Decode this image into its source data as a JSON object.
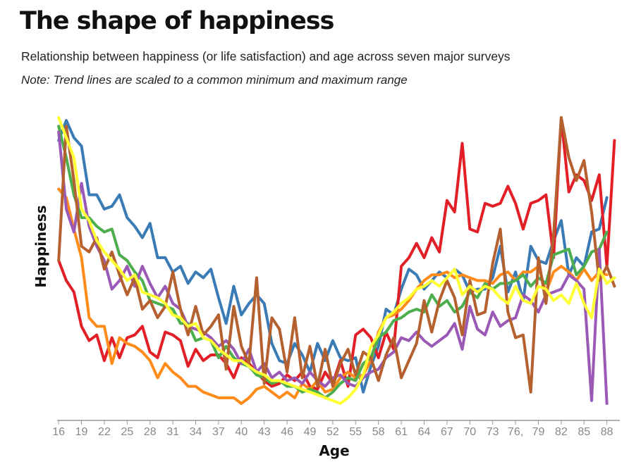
{
  "chart_data": {
    "type": "line",
    "title": "The shape of happiness",
    "subtitle": "Relationship between happiness (or life satisfaction) and age across seven major surveys",
    "note": "Note: Trend lines are scaled to a common minimum and maximum range",
    "xlabel": "Age",
    "ylabel": "Happiness",
    "xlim": [
      15.8,
      89.7
    ],
    "ylim": [
      0,
      1
    ],
    "grid": false,
    "y_ticks_visible": false,
    "x_ticks": [
      16,
      19,
      22,
      25,
      28,
      31,
      34,
      37,
      40,
      43,
      46,
      49,
      52,
      55,
      58,
      61,
      64,
      67,
      70,
      73,
      76,
      79,
      82,
      85,
      88
    ],
    "x_tick_labels": [
      "16",
      "19",
      "22",
      "25",
      "28",
      "31",
      "34",
      "37",
      "40",
      "43",
      "46",
      "49",
      "52",
      "55",
      "58",
      "61",
      "64",
      "67",
      "70",
      "73",
      "76,",
      "79",
      "82",
      "85",
      "88"
    ],
    "series": [
      {
        "color": "#3a7bb5",
        "x": [
          16,
          17,
          18,
          19,
          20,
          21,
          22,
          23,
          24,
          25,
          26,
          27,
          28,
          29,
          30,
          31,
          32,
          33,
          34,
          35,
          36,
          37,
          38,
          39,
          40,
          41,
          42,
          43,
          44,
          45,
          46,
          47,
          48,
          49,
          50,
          51,
          52,
          53,
          54,
          55,
          56,
          57,
          58,
          59,
          60,
          61,
          62,
          63,
          64,
          65,
          66,
          67,
          68,
          69,
          70,
          71,
          72,
          73,
          74,
          75,
          76,
          77,
          78,
          79,
          80,
          81,
          82,
          83,
          84,
          85,
          86,
          87,
          88
        ],
        "y": [
          0.92,
          0.99,
          0.93,
          0.9,
          0.73,
          0.73,
          0.68,
          0.69,
          0.73,
          0.65,
          0.62,
          0.58,
          0.63,
          0.51,
          0.51,
          0.46,
          0.48,
          0.42,
          0.46,
          0.44,
          0.47,
          0.37,
          0.28,
          0.41,
          0.31,
          0.35,
          0.38,
          0.35,
          0.21,
          0.15,
          0.14,
          0.21,
          0.17,
          0.11,
          0.21,
          0.15,
          0.22,
          0.16,
          0.15,
          0.16,
          0.04,
          0.13,
          0.2,
          0.33,
          0.31,
          0.4,
          0.47,
          0.45,
          0.4,
          0.43,
          0.46,
          0.44,
          0.47,
          0.45,
          0.39,
          0.4,
          0.4,
          0.44,
          0.55,
          0.39,
          0.46,
          0.36,
          0.55,
          0.5,
          0.49,
          0.57,
          0.64,
          0.45,
          0.51,
          0.48,
          0.6,
          0.61,
          0.72
        ]
      },
      {
        "color": "#e21f26",
        "x": [
          16,
          17,
          18,
          19,
          20,
          21,
          22,
          23,
          24,
          25,
          26,
          27,
          28,
          29,
          30,
          31,
          32,
          33,
          34,
          35,
          36,
          37,
          38,
          39,
          40,
          41,
          42,
          43,
          44,
          45,
          46,
          47,
          48,
          49,
          50,
          51,
          52,
          53,
          54,
          55,
          56,
          57,
          58,
          59,
          60,
          61,
          62,
          63,
          64,
          65,
          66,
          67,
          68,
          69,
          70,
          71,
          72,
          73,
          74,
          75,
          76,
          77,
          78,
          79,
          80,
          81,
          82,
          83,
          84,
          85,
          86,
          87,
          88,
          89
        ],
        "y": [
          0.5,
          0.43,
          0.39,
          0.27,
          0.22,
          0.24,
          0.15,
          0.23,
          0.16,
          0.23,
          0.24,
          0.27,
          0.18,
          0.16,
          0.25,
          0.24,
          0.22,
          0.13,
          0.19,
          0.15,
          0.17,
          0.17,
          0.14,
          0.09,
          0.16,
          0.14,
          0.11,
          0.08,
          0.06,
          0.07,
          0.1,
          0.08,
          0.11,
          0.06,
          0.05,
          0.11,
          0.07,
          0.15,
          0.06,
          0.24,
          0.26,
          0.23,
          0.16,
          0.25,
          0.19,
          0.48,
          0.51,
          0.56,
          0.51,
          0.58,
          0.53,
          0.71,
          0.67,
          0.91,
          0.61,
          0.6,
          0.7,
          0.69,
          0.7,
          0.76,
          0.7,
          0.61,
          0.7,
          0.71,
          0.73,
          0.51,
          1.0,
          0.74,
          0.8,
          0.78,
          0.71,
          0.8,
          0.48,
          0.92
        ]
      },
      {
        "color": "#ff8c1a",
        "x": [
          16,
          17,
          18,
          19,
          20,
          21,
          22,
          23,
          24,
          25,
          26,
          27,
          28,
          29,
          30,
          31,
          32,
          33,
          34,
          35,
          36,
          37,
          38,
          39,
          40,
          41,
          42,
          43,
          44,
          45,
          46,
          47,
          48,
          49,
          50,
          51,
          52,
          53,
          54,
          55,
          56,
          57,
          58,
          59,
          60,
          61,
          62,
          63,
          64,
          65,
          66,
          67,
          68,
          69,
          70,
          71,
          72,
          73,
          74,
          75,
          76,
          77,
          78,
          79,
          80,
          81,
          82,
          83,
          84,
          85,
          86,
          87,
          88
        ],
        "y": [
          0.75,
          0.72,
          0.61,
          0.51,
          0.3,
          0.27,
          0.27,
          0.14,
          0.23,
          0.21,
          0.2,
          0.18,
          0.15,
          0.09,
          0.14,
          0.11,
          0.09,
          0.06,
          0.06,
          0.04,
          0.03,
          0.02,
          0.02,
          0.02,
          0.0,
          0.02,
          0.05,
          0.06,
          0.04,
          0.02,
          0.04,
          0.02,
          0.07,
          0.05,
          0.08,
          0.04,
          0.05,
          0.09,
          0.11,
          0.09,
          0.1,
          0.15,
          0.25,
          0.3,
          0.31,
          0.33,
          0.36,
          0.4,
          0.43,
          0.45,
          0.45,
          0.46,
          0.44,
          0.45,
          0.44,
          0.43,
          0.43,
          0.42,
          0.45,
          0.46,
          0.43,
          0.46,
          0.46,
          0.48,
          0.39,
          0.46,
          0.48,
          0.46,
          0.43,
          0.47,
          0.43,
          0.46,
          0.45
        ]
      },
      {
        "color": "#4cae4c",
        "x": [
          16,
          17,
          18,
          19,
          20,
          21,
          22,
          23,
          24,
          25,
          26,
          27,
          28,
          29,
          30,
          31,
          32,
          33,
          34,
          35,
          36,
          37,
          38,
          39,
          40,
          41,
          42,
          43,
          44,
          45,
          46,
          47,
          48,
          49,
          50,
          51,
          52,
          53,
          54,
          55,
          56,
          57,
          58,
          59,
          60,
          61,
          62,
          63,
          64,
          65,
          66,
          67,
          68,
          69,
          70,
          71,
          72,
          73,
          74,
          75,
          76,
          77,
          78,
          79,
          80,
          81,
          82,
          83,
          84,
          85,
          86,
          87,
          88
        ],
        "y": [
          0.97,
          0.86,
          0.73,
          0.65,
          0.65,
          0.62,
          0.6,
          0.61,
          0.52,
          0.5,
          0.46,
          0.43,
          0.36,
          0.35,
          0.34,
          0.33,
          0.28,
          0.28,
          0.22,
          0.23,
          0.22,
          0.16,
          0.2,
          0.16,
          0.14,
          0.13,
          0.1,
          0.09,
          0.07,
          0.08,
          0.06,
          0.06,
          0.04,
          0.05,
          0.04,
          0.02,
          0.04,
          0.07,
          0.09,
          0.08,
          0.14,
          0.16,
          0.23,
          0.25,
          0.29,
          0.3,
          0.32,
          0.33,
          0.32,
          0.38,
          0.34,
          0.36,
          0.32,
          0.34,
          0.39,
          0.37,
          0.42,
          0.4,
          0.42,
          0.42,
          0.43,
          0.45,
          0.41,
          0.44,
          0.42,
          0.52,
          0.53,
          0.54,
          0.45,
          0.48,
          0.53,
          0.54,
          0.6
        ]
      },
      {
        "color": "#9b59b6",
        "x": [
          16,
          17,
          18,
          19,
          20,
          21,
          22,
          23,
          24,
          25,
          26,
          27,
          28,
          29,
          30,
          31,
          32,
          33,
          34,
          35,
          36,
          37,
          38,
          39,
          40,
          41,
          42,
          43,
          44,
          45,
          46,
          47,
          48,
          49,
          50,
          51,
          52,
          53,
          54,
          55,
          56,
          57,
          58,
          59,
          60,
          61,
          62,
          63,
          64,
          65,
          66,
          67,
          68,
          69,
          70,
          71,
          72,
          73,
          74,
          75,
          76,
          77,
          78,
          79,
          80,
          81,
          82,
          83,
          84,
          85,
          86,
          87,
          88
        ],
        "y": [
          0.95,
          0.68,
          0.6,
          0.77,
          0.62,
          0.55,
          0.5,
          0.4,
          0.43,
          0.48,
          0.41,
          0.48,
          0.42,
          0.37,
          0.41,
          0.35,
          0.33,
          0.27,
          0.26,
          0.25,
          0.23,
          0.2,
          0.22,
          0.19,
          0.14,
          0.19,
          0.11,
          0.14,
          0.09,
          0.11,
          0.08,
          0.09,
          0.07,
          0.11,
          0.08,
          0.06,
          0.09,
          0.1,
          0.07,
          0.06,
          0.09,
          0.11,
          0.12,
          0.16,
          0.18,
          0.23,
          0.22,
          0.25,
          0.22,
          0.2,
          0.22,
          0.24,
          0.28,
          0.19,
          0.34,
          0.26,
          0.24,
          0.32,
          0.27,
          0.29,
          0.3,
          0.38,
          0.36,
          0.32,
          0.38,
          0.39,
          0.4,
          0.45,
          0.43,
          0.4,
          0.01,
          0.54,
          0.0
        ]
      },
      {
        "color": "#b5602f",
        "x": [
          16,
          17,
          18,
          19,
          20,
          21,
          22,
          23,
          24,
          25,
          26,
          27,
          28,
          29,
          30,
          31,
          32,
          33,
          34,
          35,
          36,
          37,
          38,
          39,
          40,
          41,
          42,
          43,
          44,
          45,
          46,
          47,
          48,
          49,
          50,
          51,
          52,
          53,
          54,
          55,
          56,
          57,
          58,
          59,
          60,
          61,
          62,
          63,
          64,
          65,
          66,
          67,
          68,
          69,
          70,
          71,
          72,
          73,
          74,
          75,
          76,
          77,
          78,
          79,
          80,
          81,
          82,
          83,
          84,
          85,
          86,
          87,
          88,
          89
        ],
        "y": [
          0.5,
          0.97,
          0.78,
          0.55,
          0.53,
          0.58,
          0.47,
          0.53,
          0.45,
          0.38,
          0.44,
          0.33,
          0.36,
          0.3,
          0.34,
          0.46,
          0.33,
          0.24,
          0.34,
          0.24,
          0.27,
          0.31,
          0.12,
          0.34,
          0.2,
          0.14,
          0.44,
          0.07,
          0.3,
          0.26,
          0.11,
          0.3,
          0.09,
          0.2,
          0.06,
          0.19,
          0.06,
          0.14,
          0.19,
          0.1,
          0.18,
          0.16,
          0.08,
          0.17,
          0.23,
          0.09,
          0.15,
          0.21,
          0.36,
          0.25,
          0.36,
          0.43,
          0.37,
          0.24,
          0.43,
          0.31,
          0.32,
          0.49,
          0.61,
          0.32,
          0.23,
          0.24,
          0.04,
          0.51,
          0.35,
          0.59,
          1.0,
          0.86,
          0.78,
          0.85,
          0.67,
          0.43,
          0.48,
          0.41
        ]
      },
      {
        "color": "#ffff33",
        "x": [
          16,
          17,
          18,
          19,
          20,
          21,
          22,
          23,
          24,
          25,
          26,
          27,
          28,
          29,
          30,
          31,
          32,
          33,
          34,
          35,
          36,
          37,
          38,
          39,
          40,
          41,
          42,
          43,
          44,
          45,
          46,
          47,
          48,
          49,
          50,
          51,
          52,
          53,
          54,
          55,
          56,
          57,
          58,
          59,
          60,
          61,
          62,
          63,
          64,
          65,
          66,
          67,
          68,
          69,
          70,
          71,
          72,
          73,
          74,
          75,
          76,
          77,
          78,
          79,
          80,
          81,
          82,
          83,
          84,
          85,
          86,
          87,
          88,
          89
        ],
        "y": [
          1.0,
          0.93,
          0.86,
          0.68,
          0.64,
          0.57,
          0.53,
          0.5,
          0.47,
          0.43,
          0.45,
          0.39,
          0.38,
          0.37,
          0.35,
          0.31,
          0.3,
          0.27,
          0.28,
          0.23,
          0.22,
          0.19,
          0.17,
          0.15,
          0.15,
          0.13,
          0.11,
          0.1,
          0.08,
          0.08,
          0.07,
          0.06,
          0.05,
          0.04,
          0.03,
          0.02,
          0.01,
          0.0,
          0.02,
          0.05,
          0.1,
          0.2,
          0.24,
          0.3,
          0.32,
          0.35,
          0.37,
          0.4,
          0.41,
          0.43,
          0.41,
          0.44,
          0.47,
          0.38,
          0.41,
          0.39,
          0.41,
          0.4,
          0.37,
          0.35,
          0.41,
          0.36,
          0.35,
          0.41,
          0.4,
          0.36,
          0.38,
          0.35,
          0.42,
          0.35,
          0.3,
          0.47,
          0.42,
          0.44
        ]
      }
    ]
  }
}
